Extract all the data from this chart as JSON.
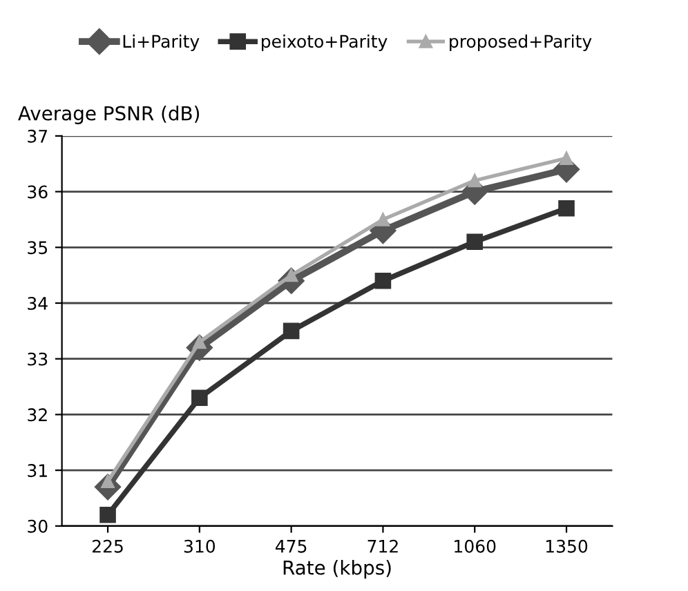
{
  "chart_data": {
    "type": "line",
    "xlabel": "Rate (kbps)",
    "ylabel": "Average PSNR (dB)",
    "categories": [
      "225",
      "310",
      "475",
      "712",
      "1060",
      "1350"
    ],
    "series": [
      {
        "name": "Li+Parity",
        "color": "#555555",
        "marker": "diamond",
        "values": [
          30.7,
          33.2,
          34.4,
          35.3,
          36.0,
          36.4
        ]
      },
      {
        "name": "peixoto+Parity",
        "color": "#333333",
        "marker": "square",
        "values": [
          30.2,
          32.3,
          33.5,
          34.4,
          35.1,
          35.7
        ]
      },
      {
        "name": "proposed+Parity",
        "color": "#aaaaaa",
        "marker": "triangle",
        "values": [
          30.8,
          33.3,
          34.5,
          35.5,
          36.2,
          36.6
        ]
      }
    ],
    "ylim": [
      30,
      37
    ],
    "yticks": [
      30,
      31,
      32,
      33,
      34,
      35,
      36,
      37
    ],
    "grid": "y",
    "legend": "top"
  }
}
